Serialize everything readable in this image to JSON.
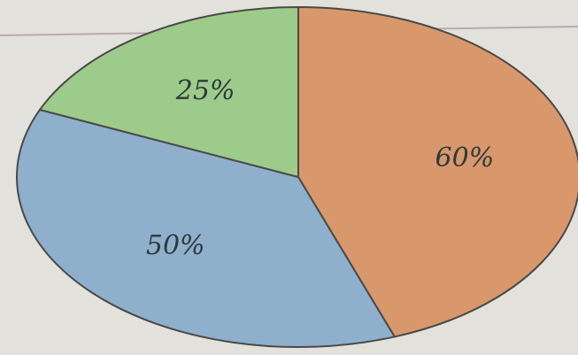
{
  "chart_data": {
    "type": "pie",
    "values": [
      60,
      50,
      25
    ],
    "value_labels": [
      "60%",
      "50%",
      "25%"
    ],
    "colors": [
      "#d9976c",
      "#8fb0cd",
      "#9dcb8b"
    ]
  }
}
